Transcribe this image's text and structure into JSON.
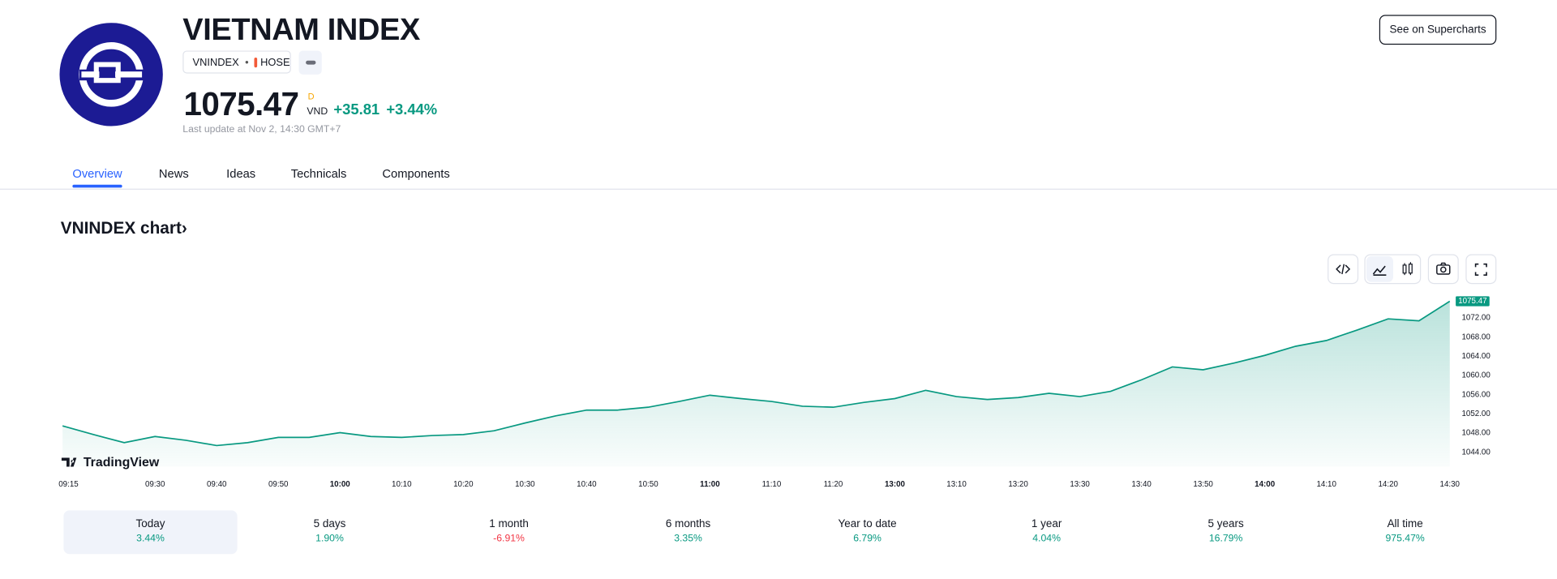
{
  "header": {
    "title": "VIETNAM INDEX",
    "symbol": "VNINDEX",
    "exchange": "HOSE",
    "price": "1075.47",
    "price_suffix": "D",
    "currency": "VND",
    "change": "+35.81",
    "change_percent": "+3.44%",
    "last_update": "Last update at Nov 2, 14:30 GMT+7",
    "supercharts_button": "See on Supercharts"
  },
  "tabs": [
    "Overview",
    "News",
    "Ideas",
    "Technicals",
    "Components"
  ],
  "section_title": "VNINDEX chart›",
  "watermark": "TradingView",
  "chart_data": {
    "type": "area",
    "color": "#089981",
    "categories": [
      "09:15",
      null,
      null,
      "09:30",
      null,
      "09:40",
      null,
      "09:50",
      null,
      "10:00",
      null,
      "10:10",
      null,
      "10:20",
      null,
      "10:30",
      null,
      "10:40",
      null,
      "10:50",
      null,
      "11:00",
      null,
      "11:10",
      null,
      "11:20",
      null,
      "13:00",
      null,
      "13:10",
      null,
      "13:20",
      null,
      "13:30",
      null,
      "13:40",
      null,
      "13:50",
      null,
      "14:00",
      null,
      "14:10",
      null,
      "14:20",
      null,
      "14:30"
    ],
    "values": [
      1049.5,
      1047.7,
      1046.0,
      1047.3,
      1046.5,
      1045.4,
      1046.0,
      1047.1,
      1047.1,
      1048.1,
      1047.3,
      1047.1,
      1047.5,
      1047.7,
      1048.5,
      1050.1,
      1051.6,
      1052.8,
      1052.8,
      1053.4,
      1054.6,
      1055.9,
      1055.2,
      1054.6,
      1053.6,
      1053.4,
      1054.4,
      1055.2,
      1056.9,
      1055.6,
      1055.0,
      1055.4,
      1056.3,
      1055.6,
      1056.7,
      1059.1,
      1061.8,
      1061.2,
      1062.6,
      1064.2,
      1066.1,
      1067.3,
      1069.5,
      1071.8,
      1071.4,
      1075.47
    ],
    "ylim": [
      1041,
      1077
    ],
    "yticks": [
      {
        "value": 1044,
        "label": "1044.00"
      },
      {
        "value": 1048,
        "label": "1048.00"
      },
      {
        "value": 1052,
        "label": "1052.00"
      },
      {
        "value": 1056,
        "label": "1056.00"
      },
      {
        "value": 1060,
        "label": "1060.00"
      },
      {
        "value": 1064,
        "label": "1064.00"
      },
      {
        "value": 1068,
        "label": "1068.00"
      },
      {
        "value": 1072,
        "label": "1072.00"
      }
    ],
    "grid": false
  },
  "periods": [
    {
      "label": "Today",
      "change": "3.44%"
    },
    {
      "label": "5 days",
      "change": "1.90%"
    },
    {
      "label": "1 month",
      "change": "-6.91%"
    },
    {
      "label": "6 months",
      "change": "3.35%"
    },
    {
      "label": "Year to date",
      "change": "6.79%"
    },
    {
      "label": "1 year",
      "change": "4.04%"
    },
    {
      "label": "5 years",
      "change": "16.79%"
    },
    {
      "label": "All time",
      "change": "975.47%"
    }
  ]
}
